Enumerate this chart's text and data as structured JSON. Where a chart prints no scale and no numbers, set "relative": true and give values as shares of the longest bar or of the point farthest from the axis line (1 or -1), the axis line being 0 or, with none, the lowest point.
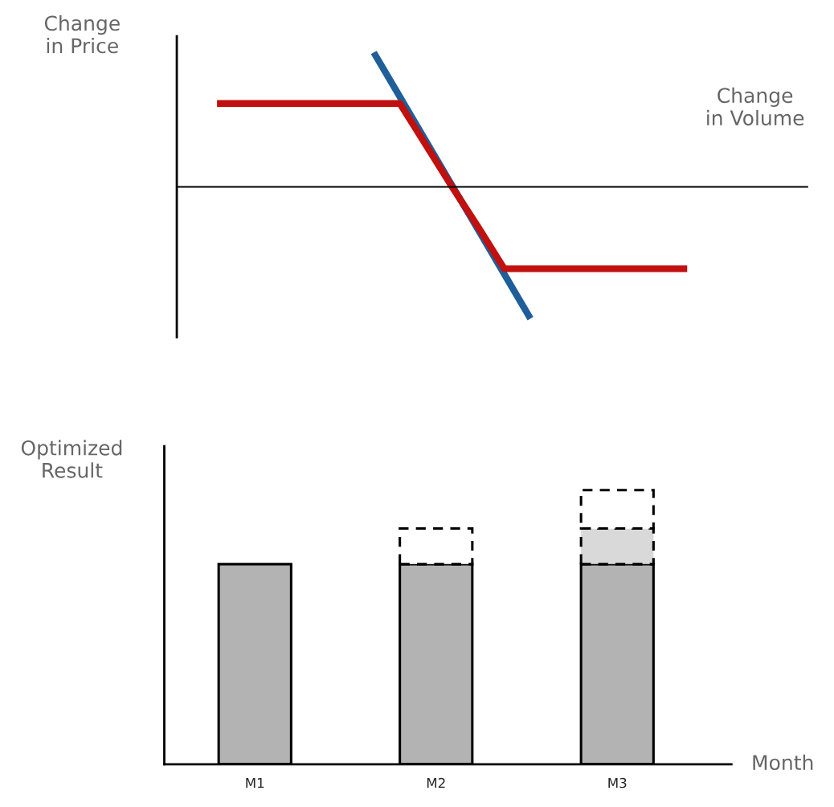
{
  "chart_data": [
    {
      "type": "line",
      "xlabel": "Change in Volume",
      "ylabel": "Change in Price",
      "relative": true,
      "tick_labels": false,
      "categories": [
        null,
        null,
        null,
        null,
        null,
        null,
        null,
        null,
        null,
        null,
        null,
        null,
        null,
        null,
        null,
        null,
        null,
        null,
        null
      ],
      "series": [
        {
          "color": "#1f5f99",
          "values": [
            null,
            null,
            null,
            null,
            null,
            null,
            1,
            0.67,
            0.34,
            0.01,
            -0.32,
            -0.65,
            -0.98,
            null,
            null,
            null,
            null,
            null,
            null
          ]
        },
        {
          "color": "#c0100f",
          "values": [
            0.62,
            0.62,
            0.62,
            0.62,
            0.62,
            0.62,
            0.62,
            0.62,
            0.31,
            0.0,
            -0.3,
            -0.61,
            -0.61,
            -0.61,
            -0.61,
            -0.61,
            -0.61,
            -0.61,
            -0.61
          ]
        }
      ]
    },
    {
      "type": "bar",
      "stacked": true,
      "relative": true,
      "tick_labels": "x",
      "categories": [
        "M1",
        "M2",
        "M3"
      ],
      "xlabel": "Month",
      "ylabel": "Optimized Result",
      "series": [
        {
          "color": "#b3b3b3",
          "values": [
            0.73,
            0.73,
            0.73
          ]
        },
        {
          "colors": [
            "#ffffff",
            "#ffffff",
            "#d9d9d9"
          ],
          "line_style": "dashed",
          "values": [
            null,
            0.13,
            0.13
          ]
        },
        {
          "color": "#ffffff",
          "line_style": "dashed",
          "values": [
            null,
            null,
            0.14
          ]
        }
      ]
    }
  ]
}
